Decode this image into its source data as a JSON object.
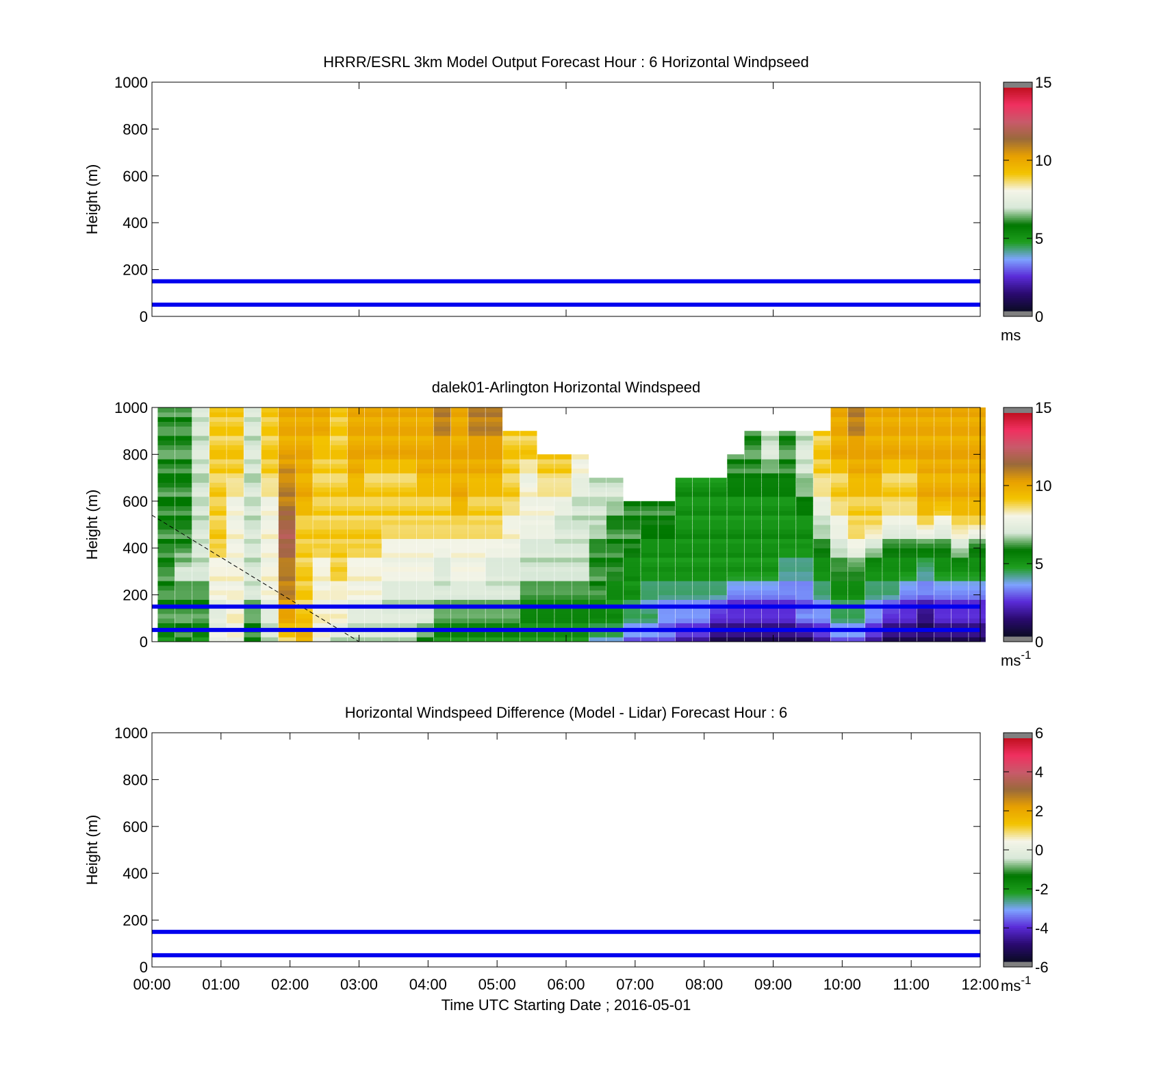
{
  "figure": {
    "xlabel": "Time UTC  Starting Date ; 2016-05-01",
    "x_ticks": [
      "00:00",
      "01:00",
      "02:00",
      "03:00",
      "04:00",
      "05:00",
      "06:00",
      "07:00",
      "08:00",
      "09:00",
      "10:00",
      "11:00",
      "12:00"
    ]
  },
  "chart_data": [
    {
      "type": "heatmap",
      "title": "HRRR/ESRL 3km Model Output   Forecast Hour : 6 Horizontal Windpseed",
      "ylabel": "Height (m)",
      "xlim": [
        "00:00",
        "12:00"
      ],
      "ylim": [
        0,
        1000
      ],
      "y_ticks": [
        0,
        200,
        400,
        600,
        800,
        1000
      ],
      "x_ticks_shown": false,
      "heatmap": null,
      "reference_lines_m": [
        50,
        150
      ],
      "reference_line_color": "#0000ee",
      "colorbar": {
        "min": 0,
        "max": 15,
        "ticks": [
          0,
          5,
          10,
          15
        ],
        "unit": "ms",
        "unit_superscript": ""
      }
    },
    {
      "type": "heatmap",
      "title": "dalek01-Arlington  Horizontal Windspeed",
      "ylabel": "Height (m)",
      "xlim": [
        "00:00",
        "12:00"
      ],
      "ylim": [
        0,
        1000
      ],
      "y_ticks": [
        0,
        200,
        400,
        600,
        800,
        1000
      ],
      "x_ticks_shown": false,
      "reference_lines_m": [
        50,
        150
      ],
      "reference_line_color": "#0000ee",
      "dashed_line": [
        [
          "00:00",
          540
        ],
        [
          "03:00",
          0
        ]
      ],
      "heatmap": {
        "time_step_min": 15,
        "height_levels_m": [
          0,
          100,
          200,
          300,
          400,
          500,
          600,
          700,
          800,
          900,
          1000
        ],
        "column_start_times": [
          "00:05",
          "00:20",
          "00:35",
          "00:50",
          "01:05",
          "01:20",
          "01:35",
          "01:50",
          "02:05",
          "02:20",
          "02:35",
          "02:50",
          "03:05",
          "03:20",
          "03:35",
          "03:50",
          "04:05",
          "04:20",
          "04:35",
          "04:50",
          "05:05",
          "05:20",
          "05:35",
          "05:50",
          "06:05",
          "06:20",
          "06:35",
          "06:50",
          "07:05",
          "07:20",
          "07:35",
          "07:50",
          "08:05",
          "08:20",
          "08:35",
          "08:50",
          "09:05",
          "09:20",
          "09:35",
          "09:50",
          "10:05",
          "10:20",
          "10:35",
          "10:50",
          "11:05",
          "11:20",
          "11:35",
          "11:50"
        ],
        "profiles_ms": [
          [
            5,
            6,
            6,
            6,
            6,
            6,
            6,
            6,
            6,
            6
          ],
          [
            6,
            6,
            6,
            7,
            6,
            6,
            6,
            6,
            6,
            6
          ],
          [
            5,
            6,
            6,
            7,
            7,
            7,
            7,
            7,
            7,
            7
          ],
          [
            8,
            7,
            8,
            8,
            9,
            9,
            9,
            9,
            9,
            9
          ],
          [
            8,
            8,
            8,
            8,
            8,
            8,
            8,
            9,
            9,
            9
          ],
          [
            6,
            6,
            7,
            7,
            7,
            7,
            7,
            7,
            7,
            7
          ],
          [
            7,
            7,
            8,
            8,
            8,
            8,
            8,
            9,
            9,
            9
          ],
          [
            9,
            10,
            11,
            11,
            12,
            12,
            11,
            11,
            10,
            10
          ],
          [
            10,
            9,
            9,
            9,
            9,
            9,
            10,
            10,
            10,
            10
          ],
          [
            8,
            8,
            8,
            8,
            9,
            9,
            9,
            9,
            9,
            10
          ],
          [
            7,
            8,
            8,
            9,
            9,
            9,
            9,
            9,
            9,
            9
          ],
          [
            7,
            7,
            8,
            8,
            9,
            9,
            9,
            10,
            10,
            10
          ],
          [
            7,
            7,
            8,
            8,
            9,
            9,
            9,
            9,
            10,
            10
          ],
          [
            7,
            7,
            7,
            8,
            8,
            9,
            9,
            9,
            10,
            10
          ],
          [
            7,
            7,
            7,
            8,
            8,
            9,
            9,
            9,
            10,
            10
          ],
          [
            6,
            7,
            7,
            8,
            8,
            9,
            9,
            10,
            10,
            10
          ],
          [
            5,
            6,
            7,
            7,
            8,
            9,
            9,
            10,
            10,
            11
          ],
          [
            5,
            6,
            7,
            8,
            8,
            9,
            10,
            10,
            10,
            10
          ],
          [
            5,
            6,
            7,
            8,
            8,
            9,
            9,
            10,
            10,
            11
          ],
          [
            5,
            6,
            7,
            7,
            8,
            9,
            9,
            10,
            10,
            11
          ],
          [
            5,
            6,
            7,
            7,
            8,
            8,
            9,
            9,
            9,
            null
          ],
          [
            5,
            5,
            6,
            7,
            7,
            8,
            8,
            8,
            9,
            null
          ],
          [
            5,
            5,
            6,
            7,
            7,
            8,
            8,
            9,
            null,
            null
          ],
          [
            5,
            5,
            6,
            7,
            7,
            7,
            8,
            9,
            null,
            null
          ],
          [
            5,
            5,
            6,
            7,
            7,
            7,
            7,
            8,
            null,
            null
          ],
          [
            4,
            5,
            6,
            6,
            6,
            7,
            7,
            null,
            null,
            null
          ],
          [
            4,
            5,
            5,
            6,
            6,
            6,
            7,
            null,
            null,
            null
          ],
          [
            3,
            4,
            5,
            5,
            6,
            6,
            null,
            null,
            null,
            null
          ],
          [
            3,
            4,
            4,
            5,
            5,
            6,
            null,
            null,
            null,
            null
          ],
          [
            3,
            3,
            4,
            5,
            5,
            6,
            null,
            null,
            null,
            null
          ],
          [
            2,
            3,
            4,
            5,
            5,
            5,
            5,
            null,
            null,
            null
          ],
          [
            2,
            3,
            4,
            5,
            5,
            5,
            5,
            null,
            null,
            null
          ],
          [
            1,
            2,
            4,
            5,
            5,
            5,
            5,
            null,
            null,
            null
          ],
          [
            1,
            2,
            3,
            5,
            5,
            5,
            5,
            6,
            null,
            null
          ],
          [
            1,
            2,
            3,
            5,
            5,
            5,
            5,
            6,
            6,
            null
          ],
          [
            1,
            2,
            3,
            5,
            5,
            5,
            5,
            6,
            7,
            null
          ],
          [
            1,
            2,
            3,
            4,
            5,
            5,
            5,
            6,
            6,
            null
          ],
          [
            1,
            3,
            3,
            4,
            5,
            5,
            6,
            7,
            7,
            null
          ],
          [
            2,
            3,
            4,
            5,
            6,
            7,
            8,
            9,
            9,
            null
          ],
          [
            3,
            4,
            5,
            6,
            7,
            8,
            9,
            9,
            10,
            10
          ],
          [
            3,
            4,
            5,
            6,
            8,
            9,
            9,
            10,
            10,
            11
          ],
          [
            2,
            3,
            4,
            5,
            7,
            9,
            9,
            10,
            10,
            10
          ],
          [
            1,
            2,
            4,
            5,
            6,
            8,
            9,
            9,
            10,
            10
          ],
          [
            1,
            2,
            3,
            5,
            6,
            8,
            9,
            9,
            10,
            10
          ],
          [
            1,
            1,
            3,
            4,
            6,
            9,
            10,
            10,
            10,
            10
          ],
          [
            1,
            2,
            3,
            5,
            6,
            8,
            10,
            10,
            10,
            10
          ],
          [
            1,
            2,
            3,
            5,
            7,
            9,
            10,
            10,
            10,
            10
          ],
          [
            1,
            2,
            3,
            5,
            6,
            9,
            10,
            10,
            10,
            10
          ]
        ]
      },
      "colorbar": {
        "min": 0,
        "max": 15,
        "ticks": [
          0,
          5,
          10,
          15
        ],
        "unit": "ms",
        "unit_superscript": "-1"
      }
    },
    {
      "type": "heatmap",
      "title": "Horizontal Windspeed Difference (Model - Lidar) Forecast Hour : 6",
      "ylabel": "Height (m)",
      "xlim": [
        "00:00",
        "12:00"
      ],
      "ylim": [
        0,
        1000
      ],
      "y_ticks": [
        0,
        200,
        400,
        600,
        800,
        1000
      ],
      "x_ticks_shown": true,
      "heatmap": null,
      "reference_lines_m": [
        50,
        150
      ],
      "reference_line_color": "#0000ee",
      "colorbar": {
        "min": -6,
        "max": 6,
        "ticks": [
          -6,
          -4,
          -2,
          0,
          2,
          4,
          6
        ],
        "unit": "ms",
        "unit_superscript": "-1"
      }
    }
  ],
  "colormap_stops": [
    "#777777",
    "#0b0b25",
    "#2a0a70",
    "#5a2bd8",
    "#7ea4ff",
    "#1e9e1e",
    "#007700",
    "#d8e8d8",
    "#f5f5e8",
    "#f3c300",
    "#e8a000",
    "#9a6a3a",
    "#c85a6a",
    "#f03060",
    "#c01020",
    "#777777"
  ]
}
